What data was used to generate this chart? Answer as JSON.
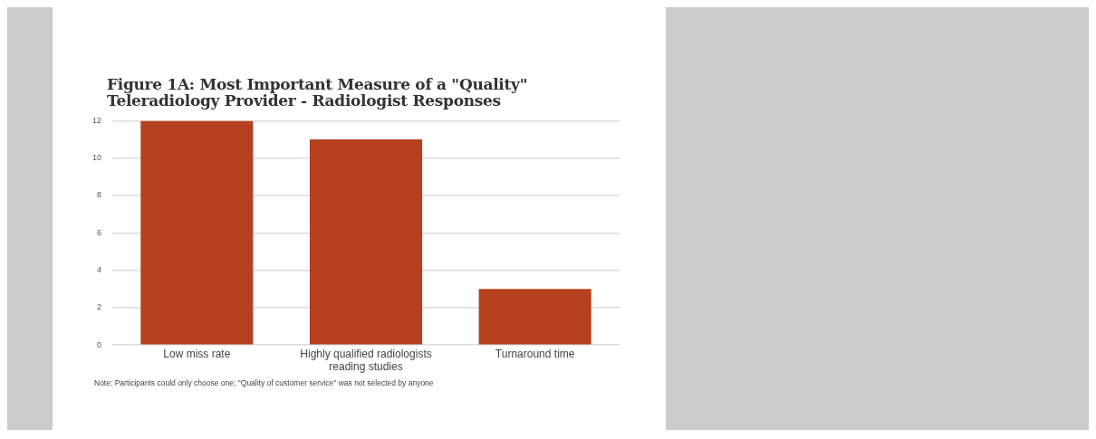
{
  "chart_data": {
    "type": "bar",
    "title": "Figure 1A: Most Important Measure of a \"Quality\" Teleradiology Provider - Radiologist Responses",
    "categories": [
      "Low miss rate",
      "Highly qualified radiologists reading studies",
      "Turnaround time"
    ],
    "values": [
      12,
      11,
      3
    ],
    "color": "#b5411f",
    "ylim": [
      0,
      12
    ],
    "yticks": [
      0,
      2,
      4,
      6,
      8,
      10,
      12
    ],
    "grid": "y",
    "legend": false,
    "annotations": [
      "Note: Participants could only choose one; \"Quality of customer service\" was not selected by anyone"
    ]
  }
}
